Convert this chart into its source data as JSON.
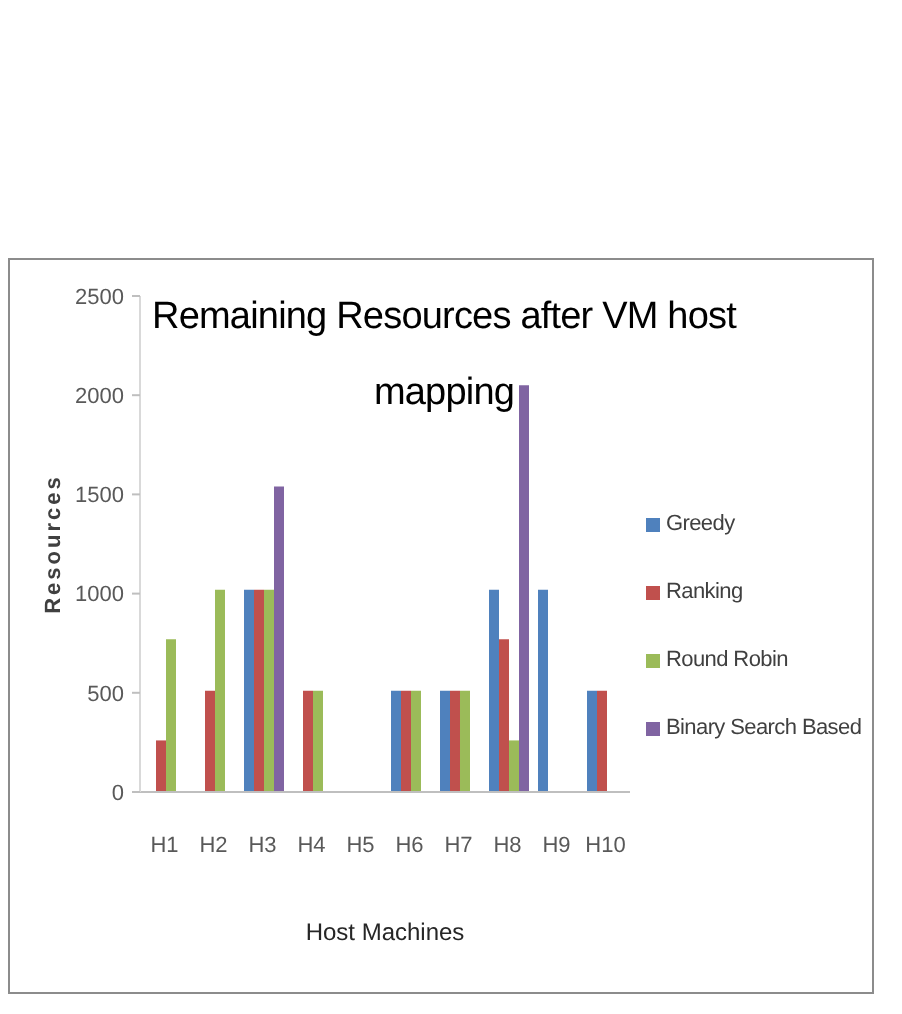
{
  "chart_data": {
    "type": "bar",
    "title": "Remaining Resources after VM host mapping",
    "xlabel": "Host Machines",
    "ylabel": "Resources",
    "categories": [
      "H1",
      "H2",
      "H3",
      "H4",
      "H5",
      "H6",
      "H7",
      "H8",
      "H9",
      "H10"
    ],
    "series": [
      {
        "name": "Greedy",
        "color": "#4f81bd",
        "values": [
          0,
          0,
          1020,
          0,
          0,
          510,
          510,
          1020,
          1020,
          510
        ]
      },
      {
        "name": "Ranking",
        "color": "#c0504d",
        "values": [
          260,
          510,
          1020,
          510,
          0,
          510,
          510,
          770,
          0,
          510
        ]
      },
      {
        "name": "Round Robin",
        "color": "#9bbb59",
        "values": [
          770,
          1020,
          1020,
          510,
          0,
          510,
          510,
          260,
          0,
          0
        ]
      },
      {
        "name": "Binary Search Based",
        "color": "#8064a2",
        "values": [
          0,
          0,
          1540,
          0,
          0,
          0,
          0,
          2050,
          0,
          0
        ]
      }
    ],
    "ylim": [
      0,
      2500
    ],
    "yticks": [
      0,
      500,
      1000,
      1500,
      2000,
      2500
    ],
    "legend": "right"
  }
}
